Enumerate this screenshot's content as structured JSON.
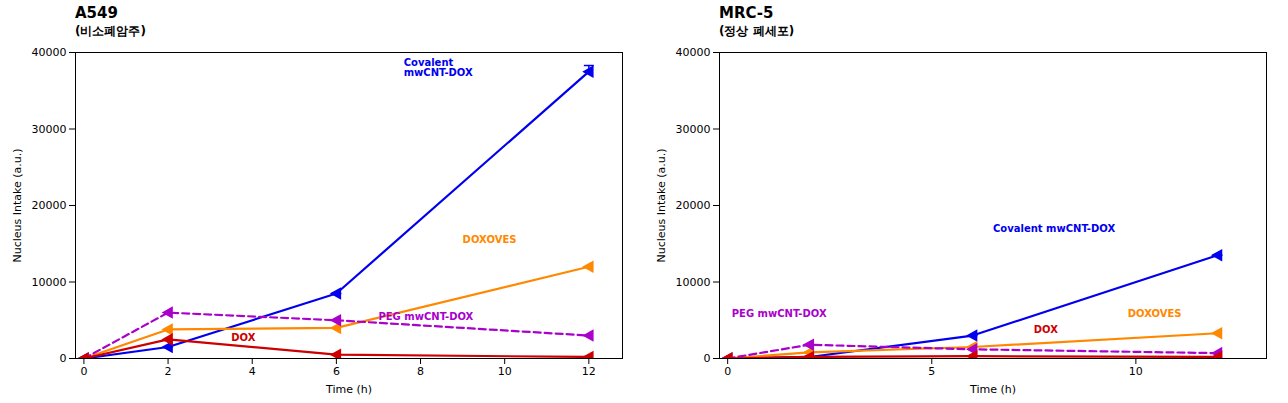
{
  "chart_data": [
    {
      "type": "line",
      "title": "A549",
      "subtitle": "(비소폐암주)",
      "xlabel": "Time (h)",
      "ylabel": "Nucleus Intake (a.u.)",
      "x": [
        0,
        2,
        6,
        12
      ],
      "series": [
        {
          "color": "#0000EE",
          "values": [
            0,
            1500,
            8500,
            37500
          ],
          "error_upper": [
            0,
            0,
            0,
            800
          ],
          "line_style": "solid",
          "marker": "triangle-left"
        },
        {
          "color": "#FF8800",
          "values": [
            0,
            3800,
            4000,
            12000
          ],
          "line_style": "solid",
          "marker": "triangle-left"
        },
        {
          "color": "#AA00CC",
          "values": [
            0,
            6000,
            5000,
            3000
          ],
          "line_style": "dashed",
          "marker": "triangle-left"
        },
        {
          "color": "#CC0000",
          "values": [
            0,
            2500,
            500,
            200
          ],
          "line_style": "solid",
          "marker": "triangle-left"
        }
      ],
      "xlim": [
        -0.2,
        12.8
      ],
      "xticks": [
        0,
        2,
        4,
        6,
        8,
        10,
        12
      ],
      "ylim": [
        0,
        40000
      ],
      "yticks": [
        0,
        10000,
        20000,
        30000,
        40000
      ],
      "grid": false,
      "annotations": [
        {
          "text": "Covalent\nmwCNT-DOX",
          "x": 7.6,
          "y": 38000,
          "color": "#0000EE"
        },
        {
          "text": "DOXOVES",
          "x": 9.0,
          "y": 15500,
          "color": "#FF8800"
        },
        {
          "text": "PEG mwCNT-DOX",
          "x": 7.0,
          "y": 5500,
          "color": "#AA00CC"
        },
        {
          "text": "DOX",
          "x": 3.5,
          "y": 2700,
          "color": "#CC0000"
        }
      ]
    },
    {
      "type": "line",
      "title": "MRC-5",
      "subtitle": "(정상 폐세포)",
      "xlabel": "Time (h)",
      "ylabel": "Nucleus Intake (a.u.)",
      "x": [
        0,
        2,
        6,
        12
      ],
      "series": [
        {
          "color": "#0000EE",
          "values": [
            0,
            200,
            3000,
            13500
          ],
          "error_upper": [
            0,
            0,
            0,
            0
          ],
          "line_style": "solid",
          "marker": "triangle-left"
        },
        {
          "color": "#FF8800",
          "values": [
            0,
            800,
            1500,
            3300
          ],
          "line_style": "solid",
          "marker": "triangle-left"
        },
        {
          "color": "#AA00CC",
          "values": [
            0,
            1800,
            1200,
            700
          ],
          "line_style": "dashed",
          "marker": "triangle-left"
        },
        {
          "color": "#CC0000",
          "values": [
            0,
            200,
            300,
            200
          ],
          "line_style": "solid",
          "marker": "triangle-left"
        }
      ],
      "xlim": [
        -0.2,
        13.2
      ],
      "xticks": [
        0,
        5,
        10
      ],
      "ylim": [
        0,
        40000
      ],
      "yticks": [
        0,
        10000,
        20000,
        30000,
        40000
      ],
      "grid": false,
      "annotations": [
        {
          "text": "Covalent mwCNT-DOX",
          "x": 6.5,
          "y": 17000,
          "color": "#0000EE"
        },
        {
          "text": "DOXOVES",
          "x": 9.8,
          "y": 5800,
          "color": "#FF8800"
        },
        {
          "text": "PEG mwCNT-DOX",
          "x": 0.1,
          "y": 5800,
          "color": "#AA00CC"
        },
        {
          "text": "DOX",
          "x": 7.5,
          "y": 3800,
          "color": "#CC0000"
        }
      ]
    }
  ]
}
